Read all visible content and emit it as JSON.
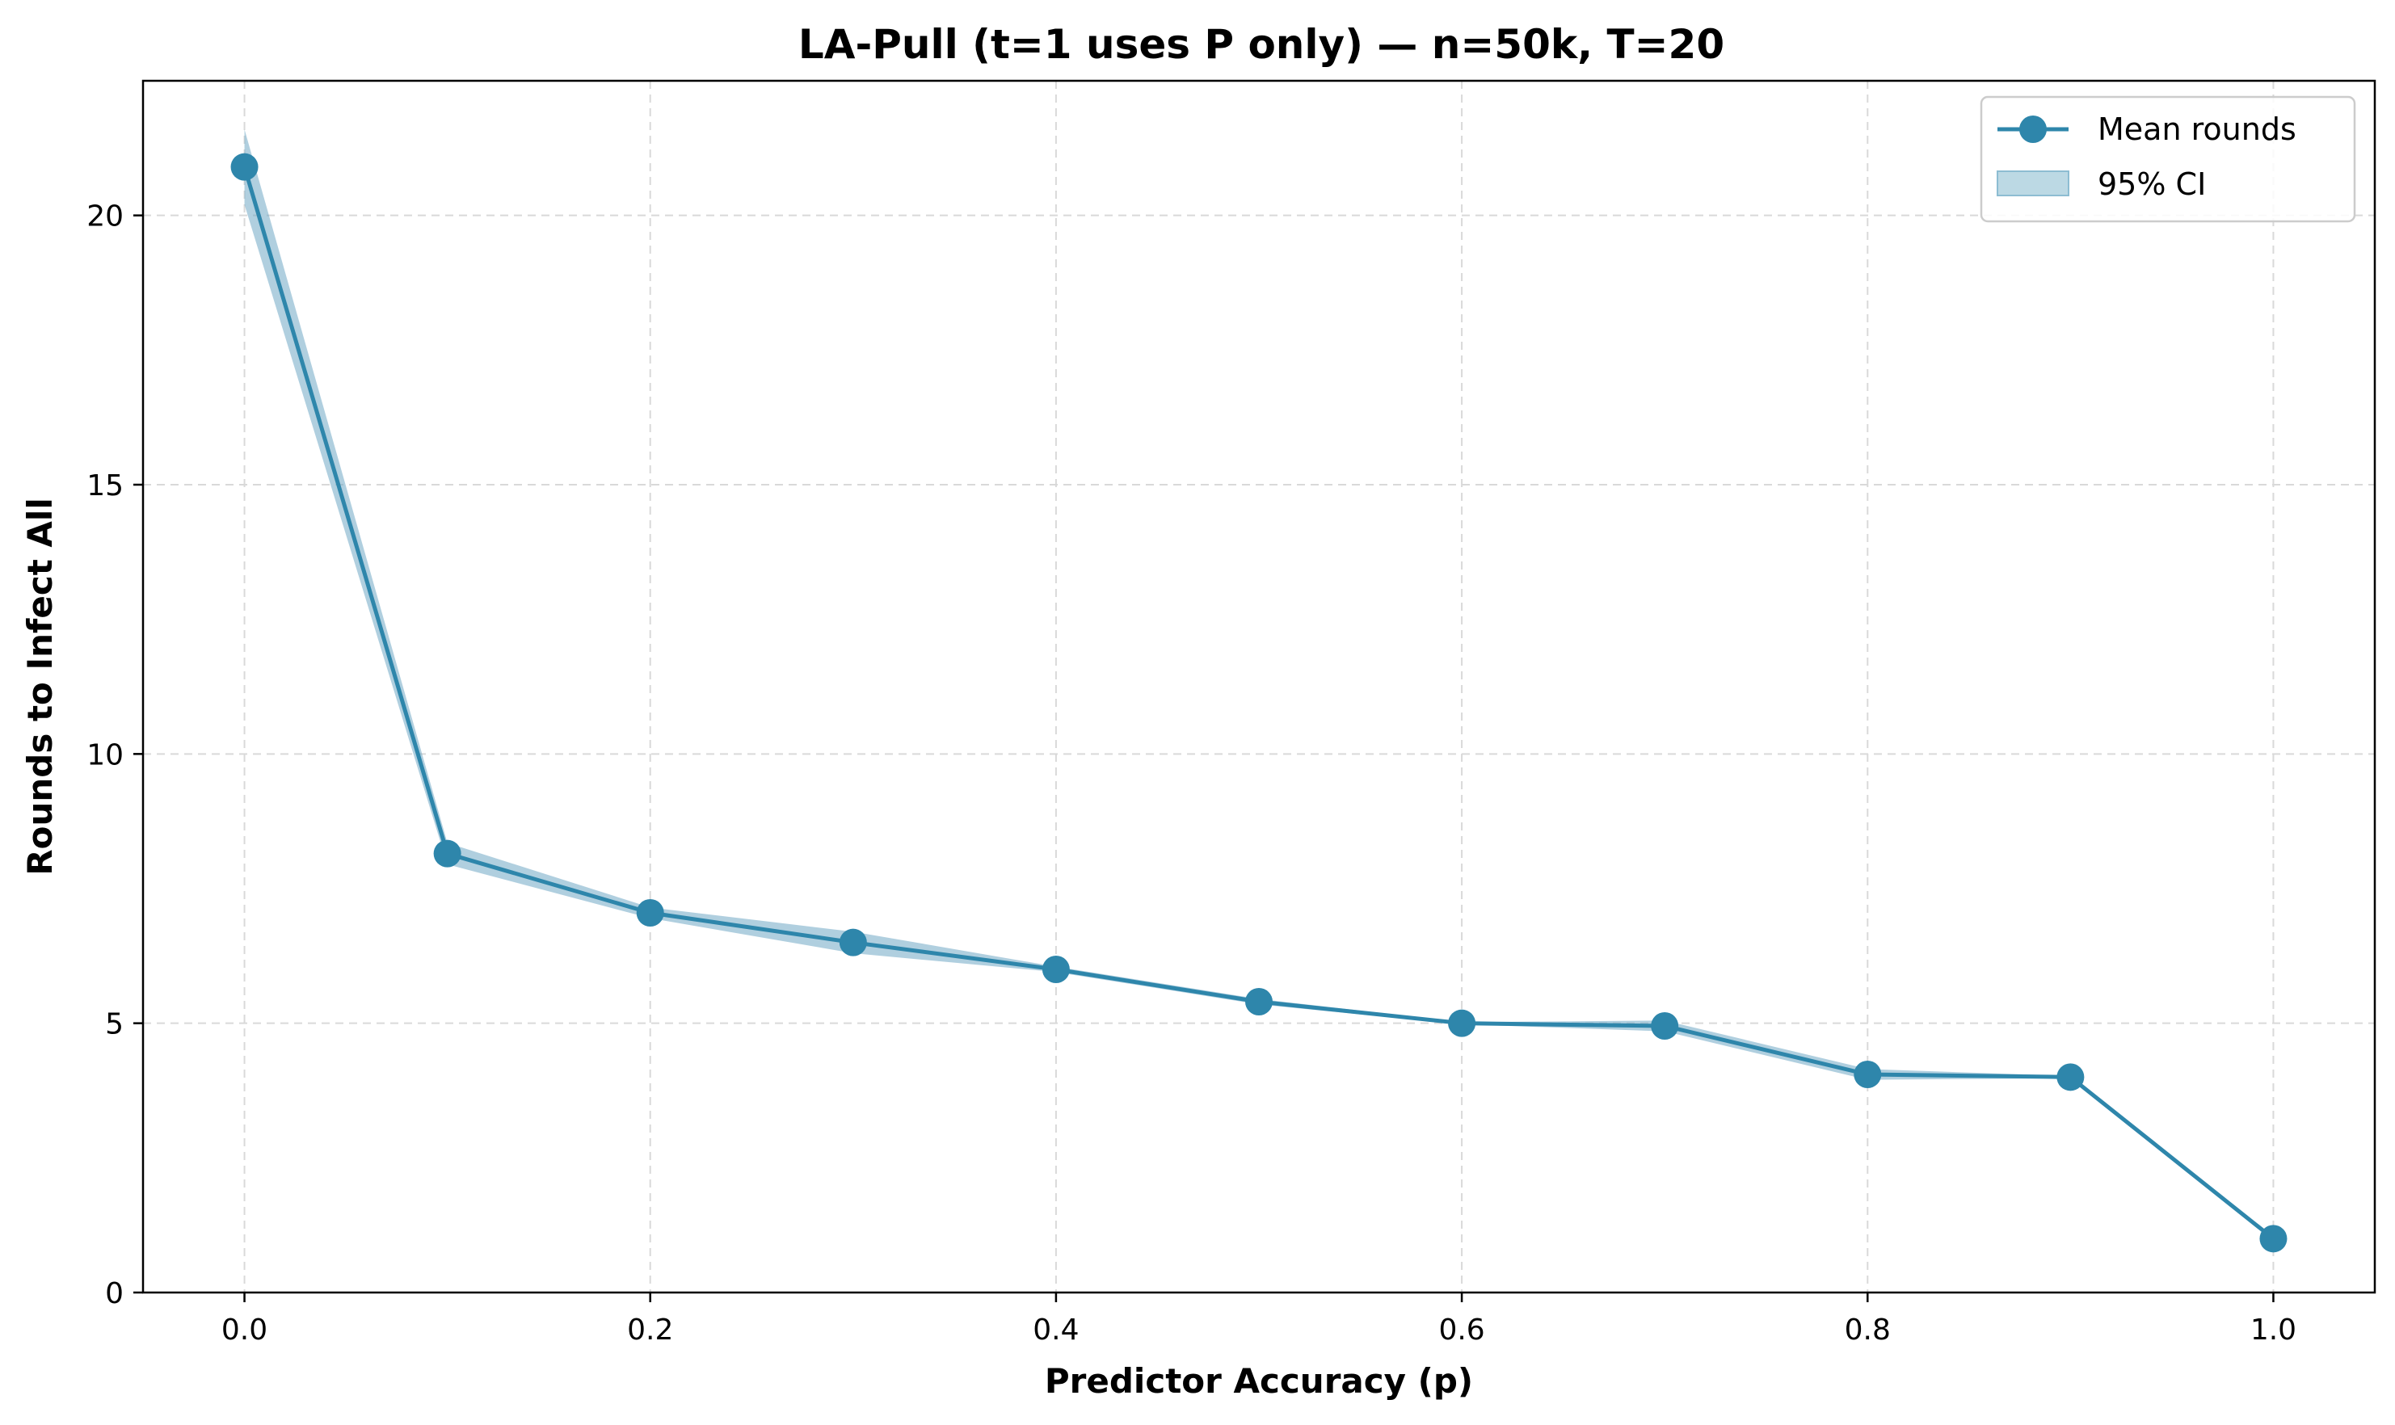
{
  "chart_data": {
    "type": "line",
    "title": "LA-Pull (t=1 uses P only) — n=50k, T=20",
    "xlabel": "Predictor Accuracy (p)",
    "ylabel": "Rounds to Infect All",
    "xlim": [
      -0.05,
      1.05
    ],
    "ylim": [
      0,
      22.5
    ],
    "xticks": [
      "0.0",
      "0.2",
      "0.4",
      "0.6",
      "0.8",
      "1.0"
    ],
    "yticks": [
      "0",
      "5",
      "10",
      "15",
      "20"
    ],
    "grid": true,
    "legend_position": "top-right",
    "series": [
      {
        "name": "Mean rounds",
        "x": [
          0.0,
          0.1,
          0.2,
          0.3,
          0.4,
          0.5,
          0.6,
          0.7,
          0.8,
          0.9,
          1.0
        ],
        "values": [
          20.9,
          8.15,
          7.05,
          6.5,
          6.0,
          5.4,
          5.0,
          4.95,
          4.05,
          4.0,
          1.0
        ],
        "ci_lower": [
          20.2,
          7.95,
          6.95,
          6.3,
          5.95,
          5.35,
          4.98,
          4.85,
          3.95,
          3.98,
          1.0
        ],
        "ci_upper": [
          21.6,
          8.35,
          7.15,
          6.7,
          6.05,
          5.45,
          5.02,
          5.05,
          4.15,
          4.02,
          1.0
        ],
        "color": "#2e86ab"
      },
      {
        "name": "95% CI",
        "color": "#bcd9e4"
      }
    ]
  }
}
